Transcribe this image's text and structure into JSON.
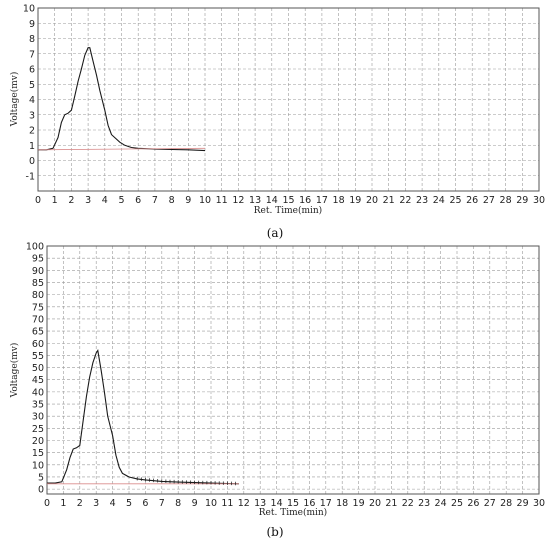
{
  "chart_data": [
    {
      "type": "line",
      "caption": "(a)",
      "xlabel": "Ret. Time(min)",
      "ylabel": "Voltage(mv)",
      "xlim": [
        0,
        30
      ],
      "ylim": [
        -2,
        10
      ],
      "x_ticks": [
        "0",
        "1",
        "2",
        "3",
        "4",
        "5",
        "6",
        "7",
        "8",
        "9",
        "10",
        "11",
        "12",
        "13",
        "14",
        "15",
        "16",
        "17",
        "18",
        "19",
        "20",
        "21",
        "22",
        "23",
        "24",
        "25",
        "26",
        "27",
        "28",
        "29",
        "30"
      ],
      "y_ticks": [
        "-1",
        "0",
        "1",
        "2",
        "3",
        "4",
        "5",
        "6",
        "7",
        "8",
        "9",
        "10"
      ],
      "grid": true,
      "series": [
        {
          "color": "#1a1a1a",
          "x": [
            0,
            0.5,
            0.9,
            1.2,
            1.4,
            1.6,
            1.8,
            2.0,
            2.2,
            2.4,
            2.6,
            2.8,
            3.0,
            3.1,
            3.3,
            3.5,
            3.7,
            4.0,
            4.2,
            4.4,
            4.6,
            4.9,
            5.2,
            5.6,
            6.0,
            7.0,
            8.0,
            9.0,
            10.0
          ],
          "y": [
            0.7,
            0.7,
            0.8,
            1.5,
            2.5,
            3.0,
            3.1,
            3.3,
            4.2,
            5.2,
            6.0,
            6.9,
            7.4,
            7.4,
            6.5,
            5.6,
            4.6,
            3.3,
            2.3,
            1.7,
            1.5,
            1.2,
            1.0,
            0.85,
            0.8,
            0.75,
            0.72,
            0.7,
            0.65
          ]
        },
        {
          "color": "#d98c8c",
          "x": [
            0,
            10.0
          ],
          "y": [
            0.7,
            0.8
          ]
        }
      ]
    },
    {
      "type": "line",
      "caption": "(b)",
      "xlabel": "Ret. Time(min)",
      "ylabel": "Voltage(mv)",
      "xlim": [
        0,
        30
      ],
      "ylim": [
        -2,
        100
      ],
      "x_ticks": [
        "0",
        "1",
        "2",
        "3",
        "4",
        "5",
        "6",
        "7",
        "8",
        "9",
        "10",
        "11",
        "12",
        "13",
        "14",
        "15",
        "16",
        "17",
        "18",
        "19",
        "20",
        "21",
        "22",
        "23",
        "24",
        "25",
        "26",
        "27",
        "28",
        "29",
        "30"
      ],
      "y_ticks": [
        "0",
        "5",
        "10",
        "15",
        "20",
        "25",
        "30",
        "35",
        "40",
        "45",
        "50",
        "55",
        "60",
        "65",
        "70",
        "75",
        "80",
        "85",
        "90",
        "95",
        "100"
      ],
      "grid": true,
      "series": [
        {
          "color": "#1a1a1a",
          "x": [
            0,
            0.5,
            0.9,
            1.2,
            1.4,
            1.6,
            1.8,
            2.0,
            2.2,
            2.4,
            2.6,
            2.8,
            3.0,
            3.1,
            3.3,
            3.5,
            3.7,
            4.0,
            4.2,
            4.4,
            4.6,
            5.0,
            5.5,
            6.0,
            7.0,
            8.0,
            9.0,
            10.0,
            11.0,
            11.7
          ],
          "y": [
            2.5,
            2.5,
            3.0,
            8.0,
            13.0,
            16.5,
            17.0,
            18.0,
            28.0,
            38.0,
            46.0,
            52.0,
            56.0,
            57.0,
            49.0,
            40.0,
            30.0,
            22.0,
            14.0,
            9.0,
            6.5,
            5.0,
            4.2,
            3.8,
            3.2,
            2.9,
            2.7,
            2.5,
            2.3,
            2.2
          ]
        },
        {
          "color": "#d98c8c",
          "x": [
            0,
            11.7
          ],
          "y": [
            2.2,
            2.2
          ]
        }
      ]
    }
  ]
}
